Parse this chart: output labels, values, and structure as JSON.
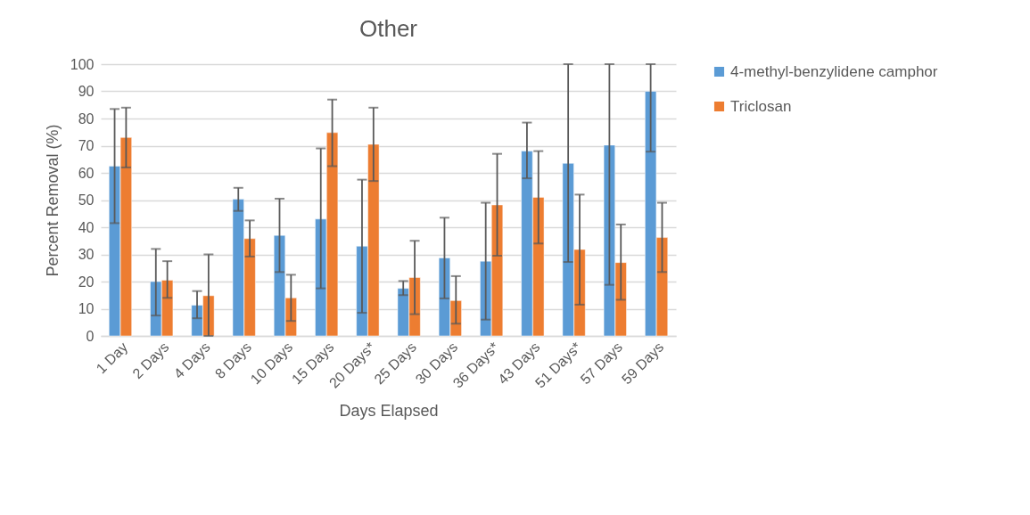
{
  "chart_data": {
    "type": "bar",
    "title": "Other",
    "xlabel": "Days Elapsed",
    "ylabel": "Percent Removal (%)",
    "categories": [
      "1 Day",
      "2 Days",
      "4 Days",
      "8 Days",
      "10 Days",
      "15 Days",
      "20 Days*",
      "25 Days",
      "30 Days",
      "36 Days*",
      "43 Days",
      "51 Days*",
      "57 Days",
      "59 Days"
    ],
    "series": [
      {
        "name": "4-methyl-benzylidene camphor",
        "color": "#5b9bd5",
        "values": [
          62.5,
          20,
          11.3,
          50.3,
          37,
          43,
          33,
          17.5,
          28.7,
          27.5,
          68,
          63.5,
          70.2,
          90
        ],
        "errors": [
          [
            41.5,
            83.5
          ],
          [
            7.5,
            32
          ],
          [
            6.5,
            16.5
          ],
          [
            46,
            54.5
          ],
          [
            23.5,
            50.5
          ],
          [
            17.5,
            69
          ],
          [
            8.5,
            57.5
          ],
          [
            15,
            20.2
          ],
          [
            13.8,
            43.5
          ],
          [
            6,
            49
          ],
          [
            58,
            78.5
          ],
          [
            27.2,
            100
          ],
          [
            18.8,
            100
          ],
          [
            67.8,
            100
          ]
        ]
      },
      {
        "name": "Triclosan",
        "color": "#ed7d31",
        "values": [
          73,
          20.5,
          14.8,
          35.8,
          14,
          74.8,
          70.5,
          21.5,
          13,
          48.2,
          51,
          31.8,
          27,
          36.2
        ],
        "errors": [
          [
            62,
            84
          ],
          [
            14,
            27.5
          ],
          [
            0,
            30
          ],
          [
            29.2,
            42.5
          ],
          [
            5.5,
            22.5
          ],
          [
            62.5,
            87
          ],
          [
            57,
            84
          ],
          [
            8,
            35
          ],
          [
            4.5,
            22
          ],
          [
            29.5,
            67
          ],
          [
            34,
            68
          ],
          [
            11.5,
            52
          ],
          [
            13.3,
            41
          ],
          [
            23.5,
            49
          ]
        ]
      }
    ],
    "ylim": [
      0,
      100
    ],
    "yticks": [
      0,
      10,
      20,
      30,
      40,
      50,
      60,
      70,
      80,
      90,
      100
    ],
    "grid": "y",
    "legend": "right"
  }
}
